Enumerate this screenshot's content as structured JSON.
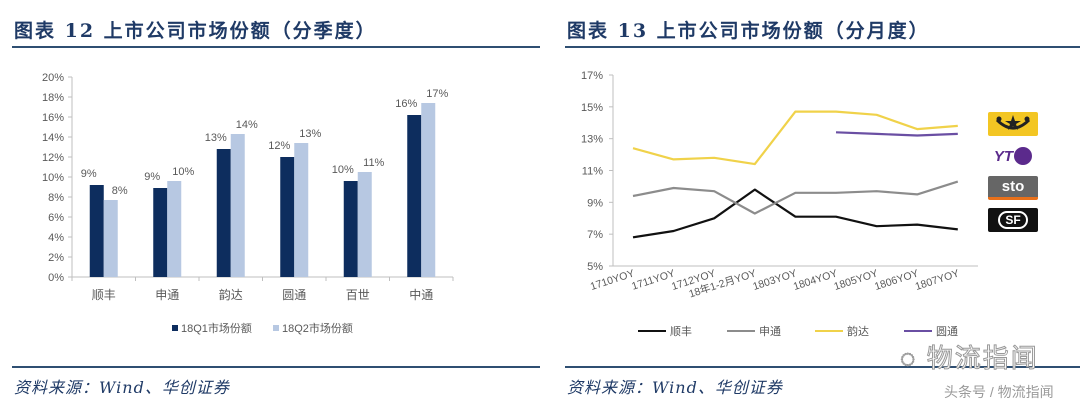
{
  "figure12": {
    "title": "图表 12   上市公司市场份额（分季度）",
    "source": "资料来源：Wind、华创证券"
  },
  "figure13": {
    "title": "图表 13   上市公司市场份额（分月度）",
    "source": "资料来源：Wind、华创证券"
  },
  "watermark": {
    "main": "物流指闻",
    "sub": "头条号 / 物流指闻"
  },
  "logos": [
    "韵达-logo",
    "YTO",
    "sto",
    "SF"
  ],
  "colors": {
    "q1": "#0d2d5e",
    "q2": "#b7c8e2",
    "shunfeng": "#111111",
    "shentong": "#8c8c8c",
    "yunda": "#f0d24a",
    "yuantong": "#6a4fa3",
    "title": "#1f3a66",
    "rule": "#2f4f72",
    "axis": "#bfbfbf",
    "label": "#595959"
  },
  "chart_data": [
    {
      "type": "bar",
      "title": "上市公司市场份额（分季度）",
      "xlabel": "",
      "ylabel": "",
      "ylim": [
        0,
        20
      ],
      "yticks": [
        "0%",
        "2%",
        "4%",
        "6%",
        "8%",
        "10%",
        "12%",
        "14%",
        "16%",
        "18%",
        "20%"
      ],
      "grid": false,
      "legend_position": "bottom",
      "categories": [
        "顺丰",
        "申通",
        "韵达",
        "圆通",
        "百世",
        "中通"
      ],
      "series": [
        {
          "name": "18Q1市场份额",
          "values": [
            9.2,
            8.9,
            12.8,
            12.0,
            9.6,
            16.2
          ],
          "labels": [
            "9%",
            "9%",
            "13%",
            "12%",
            "10%",
            "16%"
          ]
        },
        {
          "name": "18Q2市场份额",
          "values": [
            7.7,
            9.6,
            14.3,
            13.4,
            10.5,
            17.4
          ],
          "labels": [
            "8%",
            "10%",
            "14%",
            "13%",
            "11%",
            "17%"
          ]
        }
      ]
    },
    {
      "type": "line",
      "title": "上市公司市场份额（分月度）",
      "xlabel": "",
      "ylabel": "",
      "ylim": [
        5,
        17
      ],
      "yticks": [
        "5%",
        "7%",
        "9%",
        "11%",
        "13%",
        "15%",
        "17%"
      ],
      "grid": false,
      "legend_position": "bottom",
      "x": [
        "1710YOY",
        "1711YOY",
        "1712YOY",
        "18年1-2月YOY",
        "1803YOY",
        "1804YOY",
        "1805YOY",
        "1806YOY",
        "1807YOY"
      ],
      "series": [
        {
          "name": "顺丰",
          "values": [
            6.8,
            7.2,
            8.0,
            9.8,
            8.1,
            8.1,
            7.5,
            7.6,
            7.3
          ]
        },
        {
          "name": "申通",
          "values": [
            9.4,
            9.9,
            9.7,
            8.3,
            9.6,
            9.6,
            9.7,
            9.5,
            10.3
          ]
        },
        {
          "name": "韵达",
          "values": [
            12.4,
            11.7,
            11.8,
            11.4,
            14.7,
            14.7,
            14.5,
            13.6,
            13.8
          ]
        },
        {
          "name": "圆通",
          "values": [
            null,
            null,
            null,
            null,
            null,
            13.4,
            13.3,
            13.2,
            13.3
          ]
        }
      ]
    }
  ]
}
